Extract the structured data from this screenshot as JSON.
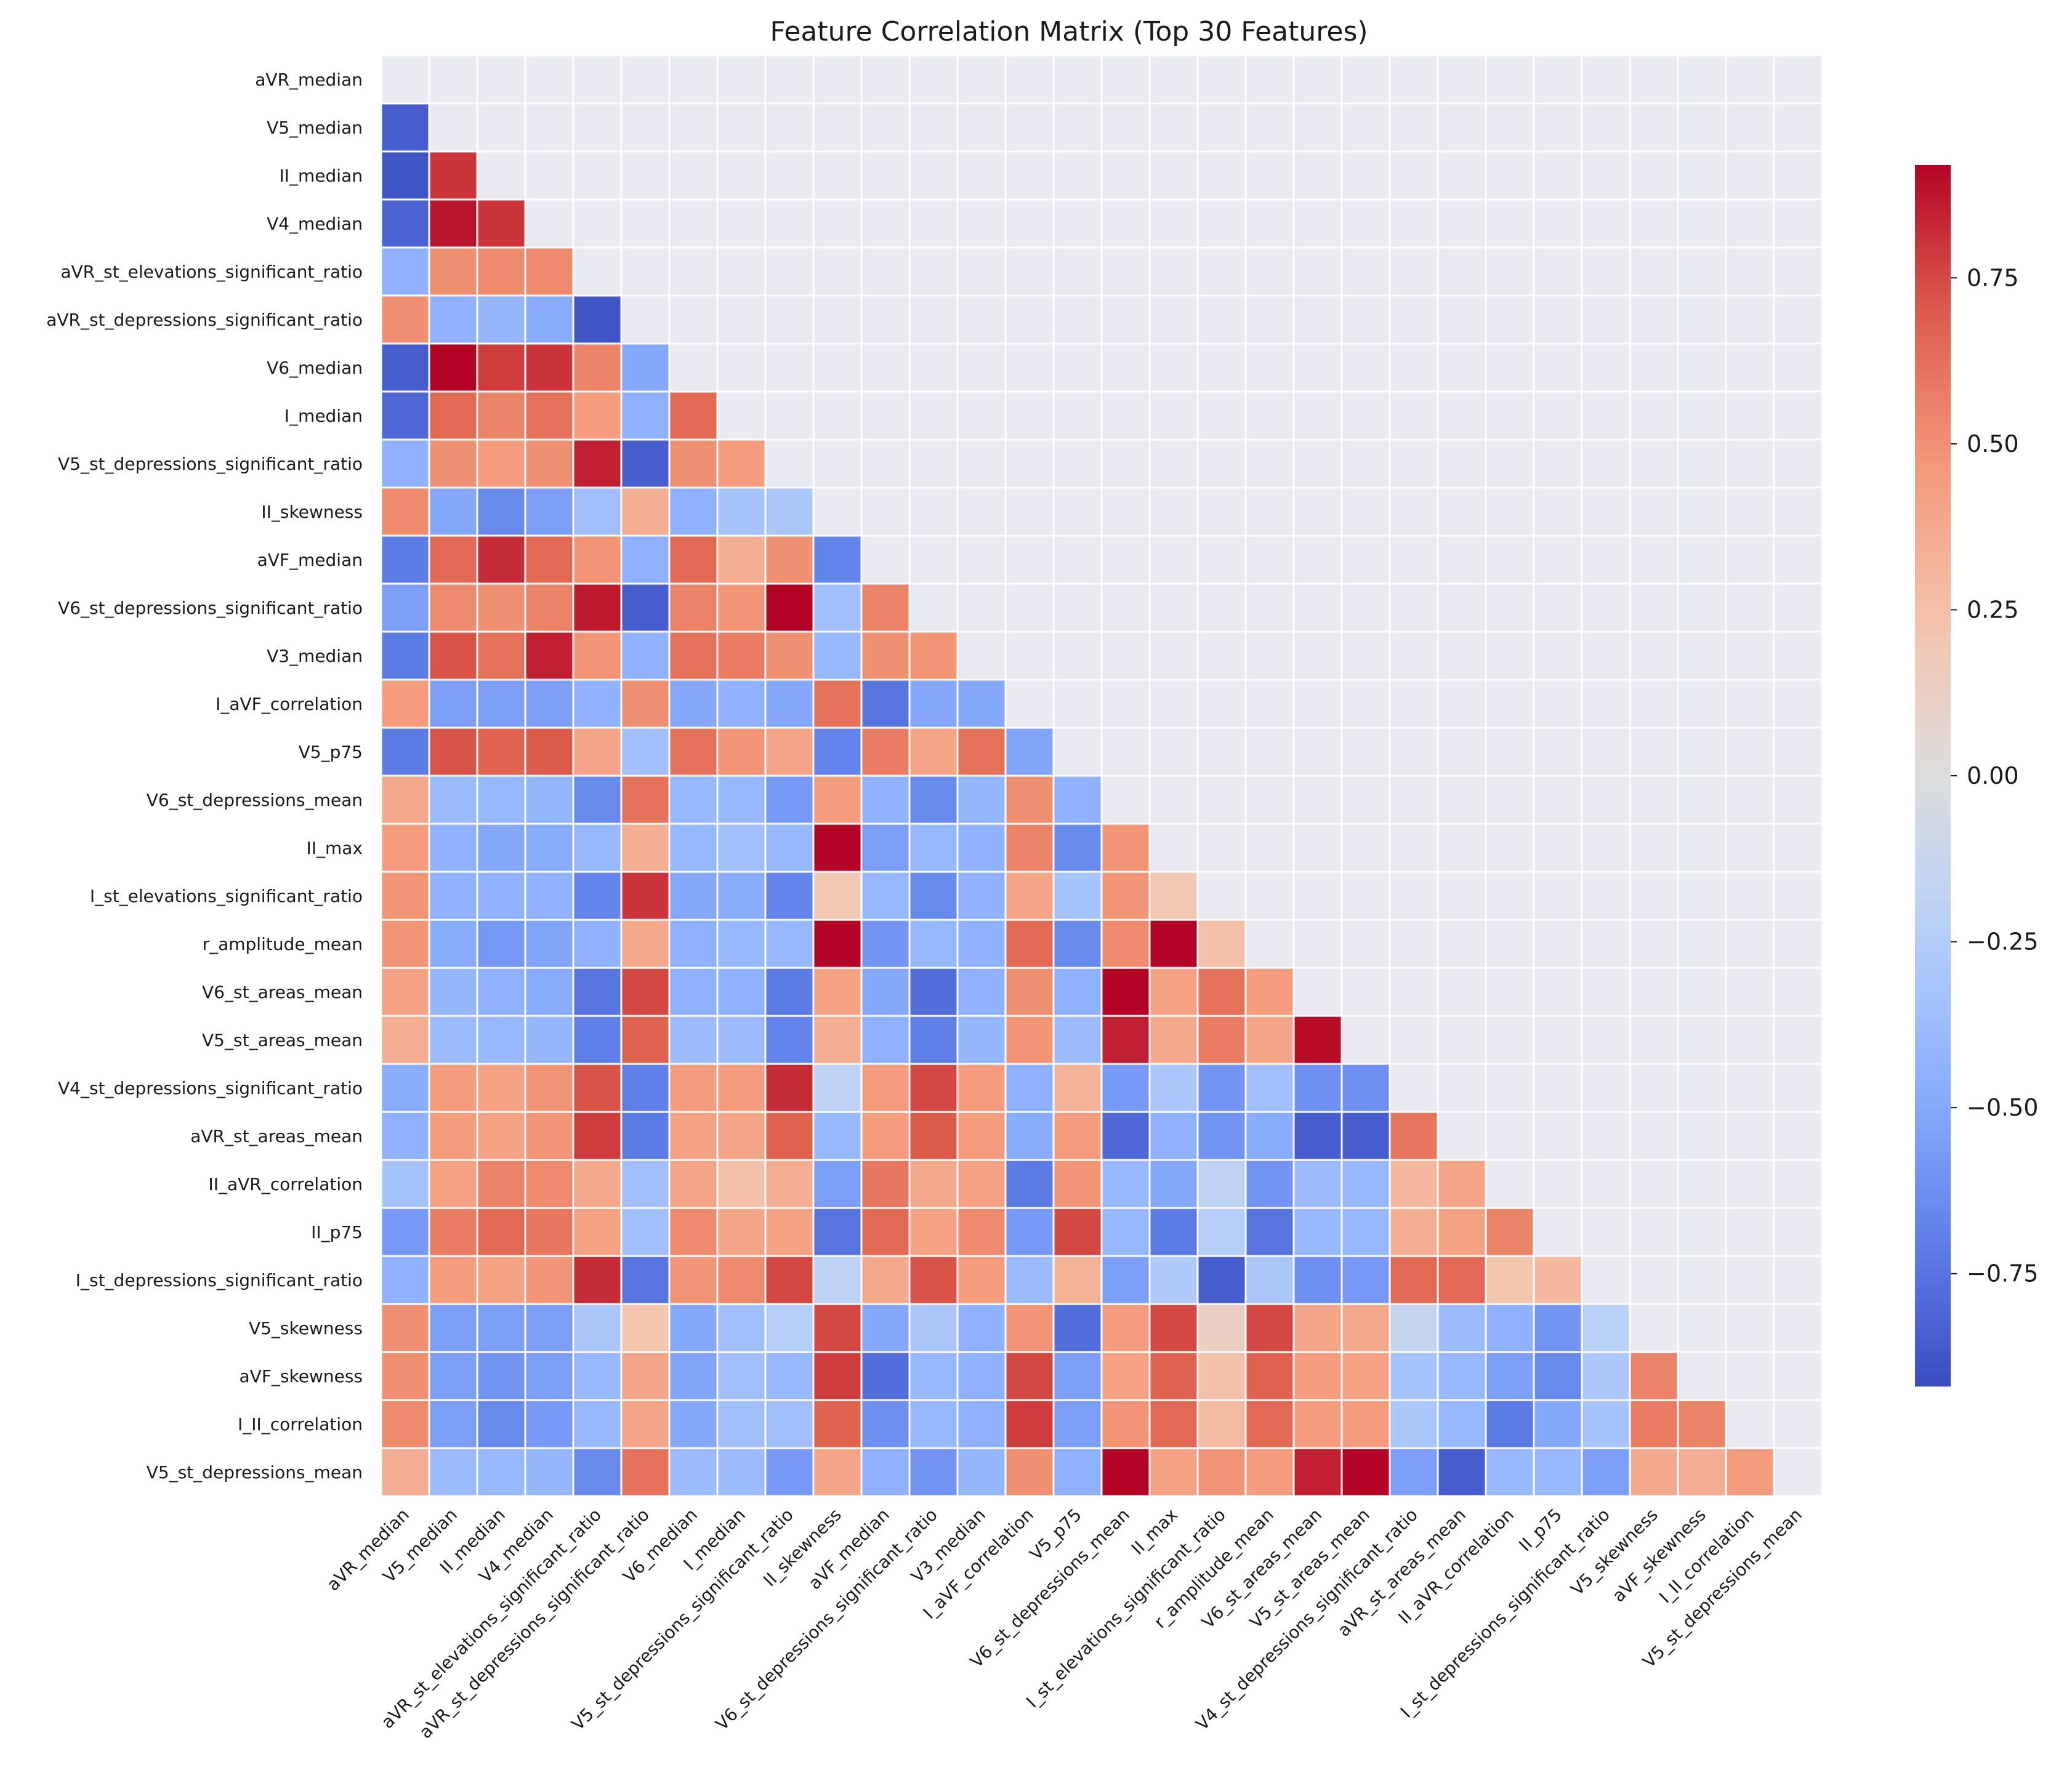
{
  "chart_data": {
    "type": "heatmap",
    "title": "Feature Correlation Matrix (Top 30 Features)",
    "xlabel": "",
    "ylabel": "",
    "mask": "upper-triangle-including-diagonal",
    "colormap": "coolwarm",
    "labels": [
      "aVR_median",
      "V5_median",
      "II_median",
      "V4_median",
      "aVR_st_elevations_significant_ratio",
      "aVR_st_depressions_significant_ratio",
      "V6_median",
      "I_median",
      "V5_st_depressions_significant_ratio",
      "II_skewness",
      "aVF_median",
      "V6_st_depressions_significant_ratio",
      "V3_median",
      "I_aVF_correlation",
      "V5_p75",
      "V6_st_depressions_mean",
      "II_max",
      "I_st_elevations_significant_ratio",
      "r_amplitude_mean",
      "V6_st_areas_mean",
      "V5_st_areas_mean",
      "V4_st_depressions_significant_ratio",
      "aVR_st_areas_mean",
      "II_aVR_correlation",
      "II_p75",
      "I_st_depressions_significant_ratio",
      "V5_skewness",
      "aVF_skewness",
      "I_II_correlation",
      "V5_st_depressions_mean"
    ],
    "values": [
      [],
      [
        -0.85
      ],
      [
        -0.88,
        0.8
      ],
      [
        -0.82,
        0.88,
        0.8
      ],
      [
        -0.45,
        0.5,
        0.52,
        0.52
      ],
      [
        0.5,
        -0.45,
        -0.42,
        -0.48,
        -0.88
      ],
      [
        -0.85,
        0.92,
        0.78,
        0.8,
        0.55,
        -0.5
      ],
      [
        -0.8,
        0.65,
        0.55,
        0.62,
        0.45,
        -0.45,
        0.65
      ],
      [
        -0.45,
        0.5,
        0.45,
        0.5,
        0.85,
        -0.85,
        0.5,
        0.45
      ],
      [
        0.52,
        -0.5,
        -0.65,
        -0.55,
        -0.35,
        0.35,
        -0.45,
        -0.32,
        -0.3
      ],
      [
        -0.72,
        0.65,
        0.82,
        0.65,
        0.48,
        -0.45,
        0.65,
        0.35,
        0.5,
        -0.68
      ],
      [
        -0.55,
        0.52,
        0.5,
        0.55,
        0.87,
        -0.85,
        0.55,
        0.48,
        0.92,
        -0.35,
        0.55
      ],
      [
        -0.72,
        0.72,
        0.62,
        0.85,
        0.48,
        -0.45,
        0.62,
        0.58,
        0.5,
        -0.4,
        0.5,
        0.48
      ],
      [
        0.45,
        -0.55,
        -0.55,
        -0.55,
        -0.45,
        0.5,
        -0.5,
        -0.45,
        -0.5,
        0.62,
        -0.75,
        -0.5,
        -0.5
      ],
      [
        -0.72,
        0.72,
        0.68,
        0.7,
        0.4,
        -0.35,
        0.62,
        0.48,
        0.4,
        -0.68,
        0.58,
        0.4,
        0.62,
        -0.52
      ],
      [
        0.38,
        -0.38,
        -0.4,
        -0.42,
        -0.65,
        0.62,
        -0.4,
        -0.4,
        -0.58,
        0.45,
        -0.45,
        -0.65,
        -0.42,
        0.5,
        -0.45
      ],
      [
        0.45,
        -0.45,
        -0.5,
        -0.48,
        -0.4,
        0.35,
        -0.4,
        -0.35,
        -0.4,
        0.92,
        -0.55,
        -0.4,
        -0.45,
        0.55,
        -0.65,
        0.48
      ],
      [
        0.48,
        -0.45,
        -0.45,
        -0.45,
        -0.68,
        0.8,
        -0.5,
        -0.48,
        -0.68,
        0.2,
        -0.4,
        -0.65,
        -0.45,
        0.4,
        -0.32,
        0.48,
        0.2
      ],
      [
        0.48,
        -0.48,
        -0.58,
        -0.52,
        -0.45,
        0.38,
        -0.45,
        -0.4,
        -0.4,
        0.92,
        -0.6,
        -0.4,
        -0.45,
        0.65,
        -0.65,
        0.52,
        0.92,
        0.25
      ],
      [
        0.42,
        -0.42,
        -0.45,
        -0.48,
        -0.75,
        0.75,
        -0.45,
        -0.45,
        -0.72,
        0.42,
        -0.5,
        -0.78,
        -0.45,
        0.5,
        -0.45,
        0.92,
        0.42,
        0.62,
        0.45
      ],
      [
        0.35,
        -0.38,
        -0.4,
        -0.42,
        -0.7,
        0.68,
        -0.38,
        -0.38,
        -0.68,
        0.35,
        -0.45,
        -0.7,
        -0.42,
        0.48,
        -0.38,
        0.85,
        0.38,
        0.58,
        0.4,
        0.9
      ],
      [
        -0.48,
        0.45,
        0.42,
        0.48,
        0.72,
        -0.7,
        0.45,
        0.45,
        0.82,
        -0.2,
        0.45,
        0.75,
        0.45,
        -0.45,
        0.32,
        -0.58,
        -0.3,
        -0.6,
        -0.35,
        -0.62,
        -0.62
      ],
      [
        -0.45,
        0.45,
        0.42,
        0.48,
        0.78,
        -0.72,
        0.42,
        0.4,
        0.68,
        -0.4,
        0.45,
        0.7,
        0.45,
        -0.48,
        0.45,
        -0.8,
        -0.45,
        -0.6,
        -0.48,
        -0.85,
        -0.85,
        0.6
      ],
      [
        -0.32,
        0.42,
        0.55,
        0.52,
        0.38,
        -0.35,
        0.4,
        0.25,
        0.35,
        -0.55,
        0.6,
        0.38,
        0.42,
        -0.72,
        0.48,
        -0.4,
        -0.5,
        -0.2,
        -0.6,
        -0.38,
        -0.4,
        0.3,
        0.4
      ],
      [
        -0.58,
        0.58,
        0.65,
        0.6,
        0.42,
        -0.35,
        0.52,
        0.4,
        0.42,
        -0.75,
        0.65,
        0.42,
        0.52,
        -0.58,
        0.75,
        -0.4,
        -0.72,
        -0.25,
        -0.75,
        -0.4,
        -0.4,
        0.35,
        0.42,
        0.55
      ],
      [
        -0.45,
        0.45,
        0.42,
        0.48,
        0.82,
        -0.75,
        0.48,
        0.52,
        0.75,
        -0.2,
        0.38,
        0.72,
        0.45,
        -0.38,
        0.32,
        -0.55,
        -0.28,
        -0.85,
        -0.3,
        -0.62,
        -0.58,
        0.65,
        0.65,
        0.22,
        0.3
      ],
      [
        0.5,
        -0.55,
        -0.55,
        -0.55,
        -0.3,
        0.22,
        -0.5,
        -0.35,
        -0.25,
        0.75,
        -0.5,
        -0.3,
        -0.45,
        0.48,
        -0.78,
        0.45,
        0.75,
        0.12,
        0.75,
        0.4,
        0.38,
        -0.15,
        -0.38,
        -0.45,
        -0.6,
        -0.22
      ],
      [
        0.5,
        -0.55,
        -0.6,
        -0.55,
        -0.4,
        0.4,
        -0.52,
        -0.35,
        -0.4,
        0.78,
        -0.78,
        -0.4,
        -0.45,
        0.75,
        -0.55,
        0.42,
        0.68,
        0.25,
        0.68,
        0.45,
        0.42,
        -0.32,
        -0.4,
        -0.55,
        -0.65,
        -0.3,
        0.55
      ],
      [
        0.52,
        -0.55,
        -0.65,
        -0.58,
        -0.4,
        0.4,
        -0.5,
        -0.35,
        -0.35,
        0.68,
        -0.62,
        -0.4,
        -0.45,
        0.78,
        -0.55,
        0.48,
        0.65,
        0.28,
        0.65,
        0.45,
        0.45,
        -0.3,
        -0.4,
        -0.72,
        -0.5,
        -0.32,
        0.58,
        0.55
      ],
      [
        0.35,
        -0.38,
        -0.4,
        -0.42,
        -0.65,
        0.62,
        -0.38,
        -0.38,
        -0.58,
        0.4,
        -0.45,
        -0.6,
        -0.42,
        0.5,
        -0.45,
        0.92,
        0.42,
        0.48,
        0.45,
        0.85,
        0.92,
        -0.55,
        -0.85,
        -0.4,
        -0.4,
        -0.55,
        0.38,
        0.35,
        0.45
      ]
    ],
    "vmin": -0.92,
    "vmax": 0.92,
    "colorbar": {
      "ticks": [
        0.75,
        0.5,
        0.25,
        0.0,
        -0.25,
        -0.5,
        -0.75
      ],
      "tick_labels": [
        "0.75",
        "0.50",
        "0.25",
        "0.00",
        "−0.25",
        "−0.50",
        "−0.75"
      ]
    },
    "grid": true,
    "background_color": "#eaeaf2",
    "cell_border_color": "#ffffff"
  }
}
